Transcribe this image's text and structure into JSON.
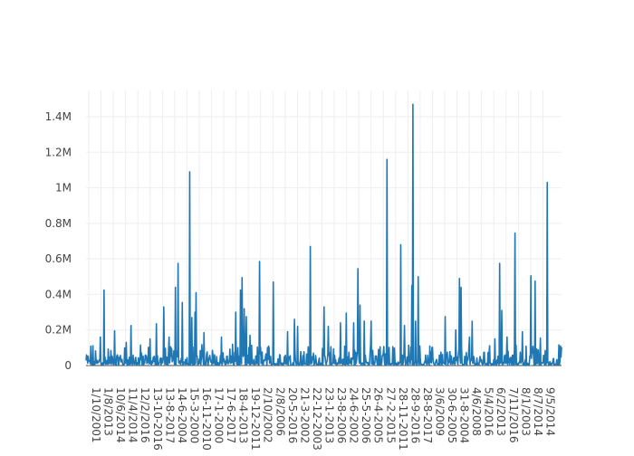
{
  "chart_data": {
    "type": "line",
    "title": "",
    "xlabel": "",
    "ylabel": "",
    "ylim": [
      0,
      1500000
    ],
    "grid": true,
    "legend": "none",
    "line_color": "#1f77b4",
    "y_ticks": [
      {
        "value": 0,
        "label": "0"
      },
      {
        "value": 200000,
        "label": "0.2M"
      },
      {
        "value": 400000,
        "label": "0.4M"
      },
      {
        "value": 600000,
        "label": "0.6M"
      },
      {
        "value": 800000,
        "label": "0.8M"
      },
      {
        "value": 1000000,
        "label": "1M"
      },
      {
        "value": 1200000,
        "label": "1.2M"
      },
      {
        "value": 1400000,
        "label": "1.4M"
      }
    ],
    "x_tick_labels": [
      "1/10/2001",
      "1/8/2013",
      "10/6/2014",
      "11/4/2014",
      "12/2/2016",
      "13-10-2016",
      "13-8-2017",
      "14-6-2004",
      "15-3-2000",
      "16-11-2010",
      "17-1-2000",
      "17-6-2017",
      "18-4-2013",
      "19-12-2011",
      "2/10/2002",
      "2/8/2006",
      "20-5-2016",
      "21-3-2002",
      "22-12-2003",
      "23-1-2013",
      "23-8-2006",
      "24-6-2002",
      "25-5-2006",
      "26-4-2005",
      "27-2-2015",
      "28-11-2011",
      "28-9-2016",
      "28-8-2017",
      "3/6/2009",
      "30-6-2005",
      "31-8-2004",
      "4/6/2008",
      "5/4/2016",
      "6/2/2013",
      "7/11/2016",
      "8/1/2003",
      "8/7/2014",
      "9/5/2014"
    ],
    "peaks": [
      {
        "x": 0.03,
        "y": 160000
      },
      {
        "x": 0.038,
        "y": 425000
      },
      {
        "x": 0.06,
        "y": 195000
      },
      {
        "x": 0.085,
        "y": 130000
      },
      {
        "x": 0.094,
        "y": 225000
      },
      {
        "x": 0.135,
        "y": 150000
      },
      {
        "x": 0.148,
        "y": 235000
      },
      {
        "x": 0.163,
        "y": 330000
      },
      {
        "x": 0.175,
        "y": 160000
      },
      {
        "x": 0.188,
        "y": 440000
      },
      {
        "x": 0.193,
        "y": 575000
      },
      {
        "x": 0.203,
        "y": 355000
      },
      {
        "x": 0.218,
        "y": 1090000
      },
      {
        "x": 0.222,
        "y": 270000
      },
      {
        "x": 0.229,
        "y": 300000
      },
      {
        "x": 0.231,
        "y": 410000
      },
      {
        "x": 0.248,
        "y": 185000
      },
      {
        "x": 0.285,
        "y": 160000
      },
      {
        "x": 0.315,
        "y": 300000
      },
      {
        "x": 0.325,
        "y": 425000
      },
      {
        "x": 0.328,
        "y": 495000
      },
      {
        "x": 0.333,
        "y": 320000
      },
      {
        "x": 0.337,
        "y": 275000
      },
      {
        "x": 0.345,
        "y": 170000
      },
      {
        "x": 0.365,
        "y": 585000
      },
      {
        "x": 0.394,
        "y": 470000
      },
      {
        "x": 0.424,
        "y": 190000
      },
      {
        "x": 0.438,
        "y": 260000
      },
      {
        "x": 0.445,
        "y": 220000
      },
      {
        "x": 0.472,
        "y": 670000
      },
      {
        "x": 0.5,
        "y": 330000
      },
      {
        "x": 0.51,
        "y": 220000
      },
      {
        "x": 0.535,
        "y": 240000
      },
      {
        "x": 0.547,
        "y": 295000
      },
      {
        "x": 0.563,
        "y": 240000
      },
      {
        "x": 0.572,
        "y": 545000
      },
      {
        "x": 0.576,
        "y": 340000
      },
      {
        "x": 0.585,
        "y": 250000
      },
      {
        "x": 0.6,
        "y": 250000
      },
      {
        "x": 0.633,
        "y": 1160000
      },
      {
        "x": 0.662,
        "y": 680000
      },
      {
        "x": 0.67,
        "y": 225000
      },
      {
        "x": 0.685,
        "y": 450000
      },
      {
        "x": 0.687,
        "y": 1470000
      },
      {
        "x": 0.693,
        "y": 250000
      },
      {
        "x": 0.698,
        "y": 500000
      },
      {
        "x": 0.755,
        "y": 275000
      },
      {
        "x": 0.778,
        "y": 200000
      },
      {
        "x": 0.785,
        "y": 490000
      },
      {
        "x": 0.789,
        "y": 440000
      },
      {
        "x": 0.806,
        "y": 160000
      },
      {
        "x": 0.812,
        "y": 250000
      },
      {
        "x": 0.86,
        "y": 150000
      },
      {
        "x": 0.87,
        "y": 575000
      },
      {
        "x": 0.874,
        "y": 310000
      },
      {
        "x": 0.885,
        "y": 160000
      },
      {
        "x": 0.902,
        "y": 745000
      },
      {
        "x": 0.918,
        "y": 190000
      },
      {
        "x": 0.935,
        "y": 505000
      },
      {
        "x": 0.944,
        "y": 475000
      },
      {
        "x": 0.955,
        "y": 155000
      },
      {
        "x": 0.97,
        "y": 1030000
      },
      {
        "x": 0.998,
        "y": 110000
      }
    ]
  }
}
